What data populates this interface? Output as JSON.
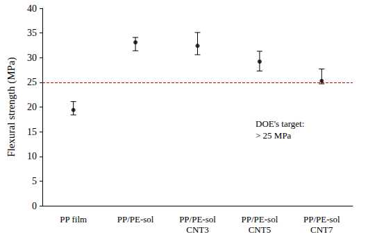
{
  "chart_data": {
    "type": "scatter",
    "categories": [
      "PP film",
      "PP/PE-sol",
      "PP/PE-sol\nCNT3",
      "PP/PE-sol\nCNT5",
      "PP/PE-sol\nCNT7"
    ],
    "values": [
      19.4,
      33.1,
      32.4,
      29.2,
      25.3
    ],
    "error_plus": [
      1.7,
      1.0,
      2.7,
      2.1,
      2.4
    ],
    "error_minus": [
      1.0,
      1.7,
      1.8,
      1.9,
      0.6
    ],
    "color": "#000000",
    "marker": "circle",
    "ylabel": "Flexural strength (MPa)",
    "ylim": [
      0,
      40
    ],
    "yticks": [
      0,
      5,
      10,
      15,
      20,
      25,
      30,
      35,
      40
    ],
    "grid": false,
    "reference_line": {
      "value": 25,
      "color": "#c00000",
      "line_style": "dashed"
    },
    "annotations": [
      {
        "text": "DOE's target:\n> 25 MPa"
      }
    ]
  }
}
